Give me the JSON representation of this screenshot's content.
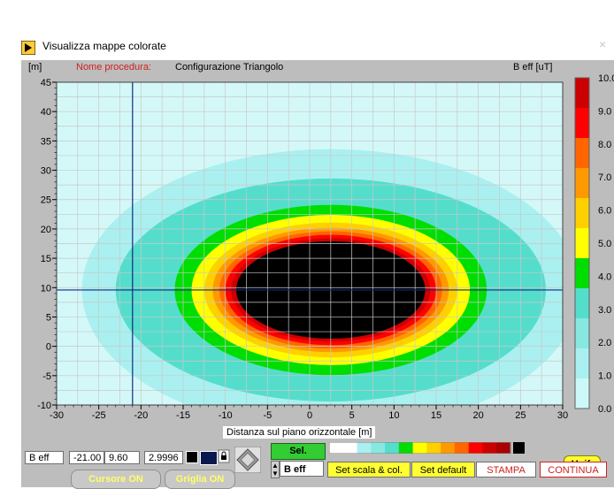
{
  "window": {
    "title": "Visualizza mappe colorate",
    "close_glyph": "×"
  },
  "header": {
    "unit_y": "[m]",
    "procedure_label": "Nome procedura:",
    "procedure_name": "Configurazione Triangolo",
    "quantity_label": "B eff [uT]"
  },
  "plot": {
    "x_axis_label": "Distanza sul piano orizzontale [m]",
    "x_ticks": [
      "-30",
      "-25",
      "-20",
      "-15",
      "-10",
      "-5",
      "0",
      "5",
      "10",
      "15",
      "20",
      "25",
      "30"
    ],
    "y_ticks": [
      "45",
      "40",
      "35",
      "30",
      "25",
      "20",
      "15",
      "10",
      "5",
      "0",
      "-5",
      "-10"
    ],
    "cursor": {
      "x": -21.0,
      "y": 9.6
    }
  },
  "chart_data": {
    "type": "heatmap",
    "title": "B eff [uT]",
    "xlabel": "Distanza sul piano orizzontale [m]",
    "ylabel": "[m]",
    "xlim": [
      -30,
      30
    ],
    "ylim": [
      -10,
      45
    ],
    "grid": true,
    "center": [
      2.5,
      9.6
    ],
    "contours": [
      {
        "level": 1.0,
        "rx": 29.5,
        "ry": 24.0,
        "color": "#aaf0f0"
      },
      {
        "level": 2.0,
        "rx": 25.5,
        "ry": 19.0,
        "color": "#55ddcc"
      },
      {
        "level": 3.0,
        "rx": 18.5,
        "ry": 14.5,
        "color": "#00dd00"
      },
      {
        "level": 4.0,
        "rx": 16.5,
        "ry": 12.8,
        "color": "#ffff00"
      },
      {
        "level": 5.0,
        "rx": 15.0,
        "ry": 11.5,
        "color": "#ffd000"
      },
      {
        "level": 6.0,
        "rx": 14.0,
        "ry": 10.6,
        "color": "#ff9900"
      },
      {
        "level": 7.0,
        "rx": 13.2,
        "ry": 10.0,
        "color": "#ff6600"
      },
      {
        "level": 8.0,
        "rx": 12.5,
        "ry": 9.4,
        "color": "#ff0000"
      },
      {
        "level": 9.0,
        "rx": 11.8,
        "ry": 8.8,
        "color": "#cc0000"
      },
      {
        "level": 10.0,
        "rx": 11.2,
        "ry": 8.3,
        "color": "#000000"
      }
    ],
    "colorbar": {
      "ticks": [
        "10.0",
        "9.0",
        "8.0",
        "7.0",
        "6.0",
        "5.0",
        "4.0",
        "3.0",
        "2.0",
        "1.0",
        "0.0"
      ],
      "colors": [
        "#cc0000",
        "#ff0000",
        "#ff6600",
        "#ff9900",
        "#ffd000",
        "#ffff00",
        "#00dd00",
        "#55ddcc",
        "#88e8e0",
        "#aaf0f0",
        "#ccf8f8"
      ]
    }
  },
  "readout": {
    "quantity": "B eff",
    "x_value": "-21.00",
    "y_value": "9.60",
    "b_value": "2.9996"
  },
  "controls": {
    "sel_label": "Sel.",
    "beff_label": "B eff",
    "set_scala_label": "Set scala & col.",
    "set_default_label": "Set default",
    "stampa_label": "STAMPA",
    "continua_label": "CONTINUA",
    "unif_label": "Unif.",
    "cursore_label": "Cursore ON",
    "griglia_label": "Griglia ON"
  },
  "colors": {
    "panel_bg": "#bdbdbd",
    "accent_red": "#d02020",
    "button_yellow": "#ffff33",
    "sel_green": "#33cc33"
  },
  "icons": {
    "app": "run-arrow-icon",
    "close": "close-icon",
    "nav": "diamond-navigator-icon",
    "lock": "lock-icon"
  }
}
